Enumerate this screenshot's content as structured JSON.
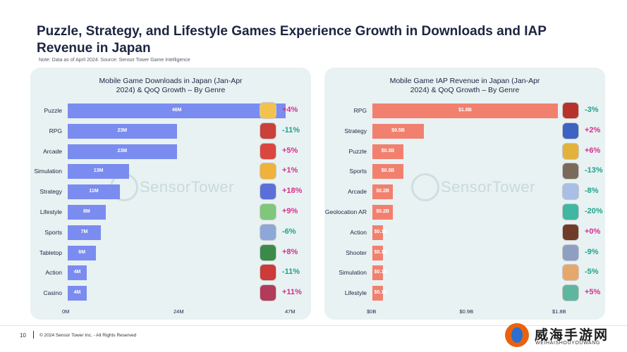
{
  "title": "Puzzle, Strategy, and Lifestyle Games Experience Growth in Downloads and IAP Revenue in Japan",
  "note": "Note: Data as of April 2024. Source: Sensor Tower Game Intelligence",
  "watermark": "SensorTower",
  "chart_data": [
    {
      "type": "bar",
      "orientation": "horizontal",
      "title": "Mobile Game Downloads in Japan (Jan-Apr 2024) & QoQ Growth – By Genre",
      "categories": [
        "Puzzle",
        "RPG",
        "Arcade",
        "Simulation",
        "Strategy",
        "Lifestyle",
        "Sports",
        "Tabletop",
        "Action",
        "Casino"
      ],
      "values": [
        46,
        23,
        23,
        13,
        11,
        8,
        7,
        6,
        4,
        4
      ],
      "value_labels": [
        "46M",
        "23M",
        "23M",
        "13M",
        "11M",
        "8M",
        "7M",
        "6M",
        "4M",
        "4M"
      ],
      "growth": [
        "+4%",
        "-11%",
        "+5%",
        "+1%",
        "+18%",
        "+9%",
        "-6%",
        "+8%",
        "-11%",
        "+11%"
      ],
      "xlim": [
        0,
        47
      ],
      "xticks": [
        "0M",
        "24M",
        "47M"
      ],
      "bar_color": "#7b8cf0",
      "icons": [
        "puzzle-game-icon",
        "rpg-game-icon",
        "arcade-game-icon",
        "simulation-game-icon",
        "strategy-game-icon",
        "lifestyle-game-icon",
        "sports-game-icon",
        "tabletop-game-icon",
        "action-game-icon",
        "casino-game-icon"
      ]
    },
    {
      "type": "bar",
      "orientation": "horizontal",
      "title": "Mobile Game IAP Revenue in Japan (Jan-Apr 2024) & QoQ Growth – By Genre",
      "categories": [
        "RPG",
        "Strategy",
        "Puzzle",
        "Sports",
        "Arcade",
        "Geolocation AR",
        "Action",
        "Shooter",
        "Simulation",
        "Lifestyle"
      ],
      "values": [
        1.8,
        0.5,
        0.3,
        0.3,
        0.2,
        0.2,
        0.1,
        0.1,
        0.1,
        0.1
      ],
      "value_labels": [
        "$1.8B",
        "$0.5B",
        "$0.3B",
        "$0.3B",
        "$0.2B",
        "$0.2B",
        "$0.1B",
        "$0.1B",
        "$0.1B",
        "$0.1B"
      ],
      "growth": [
        "-3%",
        "+2%",
        "+6%",
        "-13%",
        "-8%",
        "-20%",
        "+0%",
        "-9%",
        "-5%",
        "+5%"
      ],
      "xlim": [
        0,
        1.8
      ],
      "xticks": [
        "$0B",
        "$0.9B",
        "$1.8B"
      ],
      "bar_color": "#f2806f",
      "icons": [
        "rpg-game-icon",
        "strategy-game-icon",
        "puzzle-game-icon",
        "sports-game-icon",
        "arcade-game-icon",
        "geolocation-game-icon",
        "action-game-icon",
        "shooter-game-icon",
        "simulation-game-icon",
        "lifestyle-game-icon"
      ]
    }
  ],
  "icon_colors": [
    "#f3c24c",
    "#c9413a",
    "#d9473f",
    "#f0b23a",
    "#5b6fd8",
    "#7fc77a",
    "#8da7d8",
    "#3b8a4a",
    "#cc3a3a",
    "#b23a5a"
  ],
  "icon_colors_right": [
    "#b8322c",
    "#3a63c4",
    "#e2b23b",
    "#7a6a5c",
    "#a9bfe6",
    "#3fb7a3",
    "#6f3c2a",
    "#8f9fc4",
    "#e6a86a",
    "#5fb6a0"
  ],
  "footer": {
    "page_number": "10",
    "copyright": "© 2024 Sensor Tower Inc. - All Rights Reserved"
  },
  "logo": {
    "text": "威海手游网",
    "sub": "WEIHAISHOUYOUWANG"
  }
}
